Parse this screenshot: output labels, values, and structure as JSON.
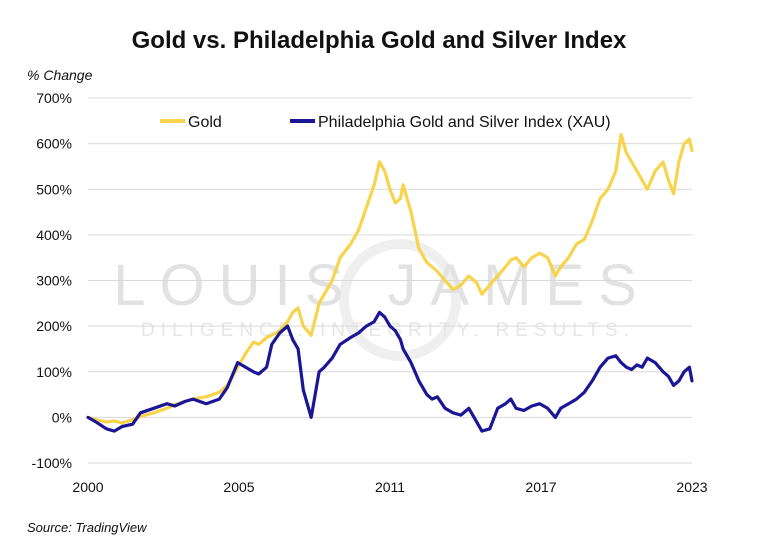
{
  "chart_data": {
    "type": "line",
    "title": "Gold vs. Philadelphia Gold and Silver Index",
    "ylabel": "% Change",
    "xlabel": "",
    "source": "Source: TradingView",
    "watermark": {
      "main": "LOUIS JAMES",
      "tagline": "DILIGENCE. INTEGRITY. RESULTS."
    },
    "xlim": [
      2000,
      2023
    ],
    "ylim": [
      -100,
      700
    ],
    "yticks": [
      -100,
      0,
      100,
      200,
      300,
      400,
      500,
      600,
      700
    ],
    "ytick_labels": [
      "-100%",
      "0%",
      "100%",
      "200%",
      "300%",
      "400%",
      "500%",
      "600%",
      "700%"
    ],
    "xticks": [
      2000,
      2005.75,
      2011.5,
      2017.25,
      2023
    ],
    "xtick_labels": [
      "2000",
      "2005",
      "2011",
      "2017",
      "2023"
    ],
    "legend_position": "top",
    "grid": true,
    "series": [
      {
        "name": "Gold",
        "color": "#f7d44c",
        "x": [
          2000,
          2000.3,
          2000.7,
          2001,
          2001.3,
          2001.7,
          2002,
          2002.5,
          2003,
          2003.3,
          2003.7,
          2004,
          2004.5,
          2005,
          2005.3,
          2005.7,
          2006,
          2006.3,
          2006.5,
          2006.8,
          2007,
          2007.3,
          2007.6,
          2007.8,
          2008,
          2008.2,
          2008.5,
          2008.8,
          2009,
          2009.3,
          2009.6,
          2010,
          2010.3,
          2010.6,
          2010.9,
          2011.1,
          2011.3,
          2011.5,
          2011.7,
          2011.9,
          2012,
          2012.3,
          2012.6,
          2012.9,
          2013.1,
          2013.3,
          2013.6,
          2013.9,
          2014.2,
          2014.5,
          2014.8,
          2015,
          2015.3,
          2015.6,
          2015.9,
          2016.1,
          2016.3,
          2016.6,
          2016.9,
          2017.2,
          2017.5,
          2017.8,
          2018,
          2018.3,
          2018.6,
          2018.9,
          2019.2,
          2019.5,
          2019.8,
          2020.1,
          2020.3,
          2020.5,
          2020.7,
          2020.9,
          2021.1,
          2021.3,
          2021.6,
          2021.9,
          2022.1,
          2022.3,
          2022.5,
          2022.7,
          2022.9,
          2023
        ],
        "values": [
          0,
          -5,
          -10,
          -8,
          -12,
          -5,
          2,
          10,
          20,
          28,
          35,
          40,
          45,
          55,
          70,
          110,
          140,
          165,
          160,
          175,
          180,
          190,
          210,
          230,
          240,
          200,
          180,
          250,
          270,
          300,
          350,
          380,
          410,
          460,
          510,
          560,
          540,
          500,
          470,
          480,
          510,
          450,
          370,
          340,
          330,
          320,
          300,
          280,
          290,
          310,
          295,
          270,
          290,
          310,
          330,
          345,
          350,
          330,
          350,
          360,
          350,
          310,
          330,
          350,
          380,
          390,
          430,
          480,
          500,
          540,
          620,
          580,
          560,
          540,
          520,
          500,
          540,
          560,
          520,
          490,
          560,
          600,
          610,
          585
        ]
      },
      {
        "name": "Philadelphia Gold and Silver Index (XAU)",
        "color": "#1a1696",
        "x": [
          2000,
          2000.3,
          2000.7,
          2001,
          2001.3,
          2001.7,
          2002,
          2002.5,
          2003,
          2003.3,
          2003.7,
          2004,
          2004.5,
          2005,
          2005.3,
          2005.7,
          2006,
          2006.3,
          2006.5,
          2006.8,
          2007,
          2007.3,
          2007.6,
          2007.8,
          2008,
          2008.2,
          2008.5,
          2008.8,
          2009,
          2009.3,
          2009.6,
          2010,
          2010.3,
          2010.6,
          2010.9,
          2011.1,
          2011.3,
          2011.5,
          2011.7,
          2011.9,
          2012,
          2012.3,
          2012.6,
          2012.9,
          2013.1,
          2013.3,
          2013.6,
          2013.9,
          2014.2,
          2014.5,
          2014.8,
          2015,
          2015.3,
          2015.6,
          2015.9,
          2016.1,
          2016.3,
          2016.6,
          2016.9,
          2017.2,
          2017.5,
          2017.8,
          2018,
          2018.3,
          2018.6,
          2018.9,
          2019.2,
          2019.5,
          2019.8,
          2020.1,
          2020.3,
          2020.5,
          2020.7,
          2020.9,
          2021.1,
          2021.3,
          2021.6,
          2021.9,
          2022.1,
          2022.3,
          2022.5,
          2022.7,
          2022.9,
          2023
        ],
        "values": [
          0,
          -10,
          -25,
          -30,
          -20,
          -15,
          10,
          20,
          30,
          25,
          35,
          40,
          30,
          40,
          65,
          120,
          110,
          100,
          95,
          110,
          160,
          185,
          200,
          170,
          150,
          60,
          0,
          100,
          110,
          130,
          160,
          175,
          185,
          200,
          210,
          230,
          220,
          200,
          190,
          170,
          150,
          120,
          80,
          50,
          40,
          45,
          20,
          10,
          5,
          20,
          -10,
          -30,
          -25,
          20,
          30,
          40,
          20,
          15,
          25,
          30,
          20,
          0,
          20,
          30,
          40,
          55,
          80,
          110,
          130,
          135,
          120,
          110,
          105,
          115,
          110,
          130,
          120,
          100,
          90,
          70,
          80,
          100,
          110,
          80
        ]
      }
    ]
  }
}
